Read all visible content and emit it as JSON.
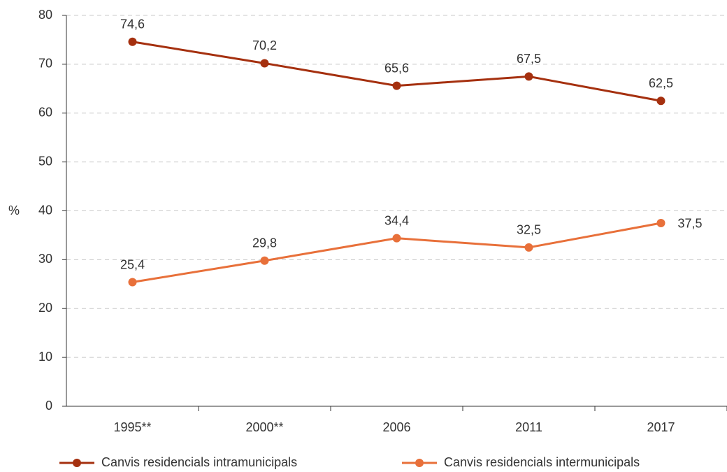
{
  "chart_data": {
    "type": "line",
    "y_label": "%",
    "categories": [
      "1995**",
      "2000**",
      "2006",
      "2011",
      "2017"
    ],
    "series": [
      {
        "name": "Canvis residencials intramunicipals",
        "color": "#a5300f",
        "values": [
          74.6,
          70.2,
          65.6,
          67.5,
          62.5
        ],
        "value_labels": [
          "74,6",
          "70,2",
          "65,6",
          "67,5",
          "62,5"
        ]
      },
      {
        "name": "Canvis residencials intermunicipals",
        "color": "#e8703a",
        "values": [
          25.4,
          29.8,
          34.4,
          32.5,
          37.5
        ],
        "value_labels": [
          "25,4",
          "29,8",
          "34,4",
          "32,5",
          "37,5"
        ]
      }
    ],
    "ylim": [
      0,
      80
    ],
    "yticks": [
      0,
      10,
      20,
      30,
      40,
      50,
      60,
      70,
      80
    ],
    "grid": true
  }
}
